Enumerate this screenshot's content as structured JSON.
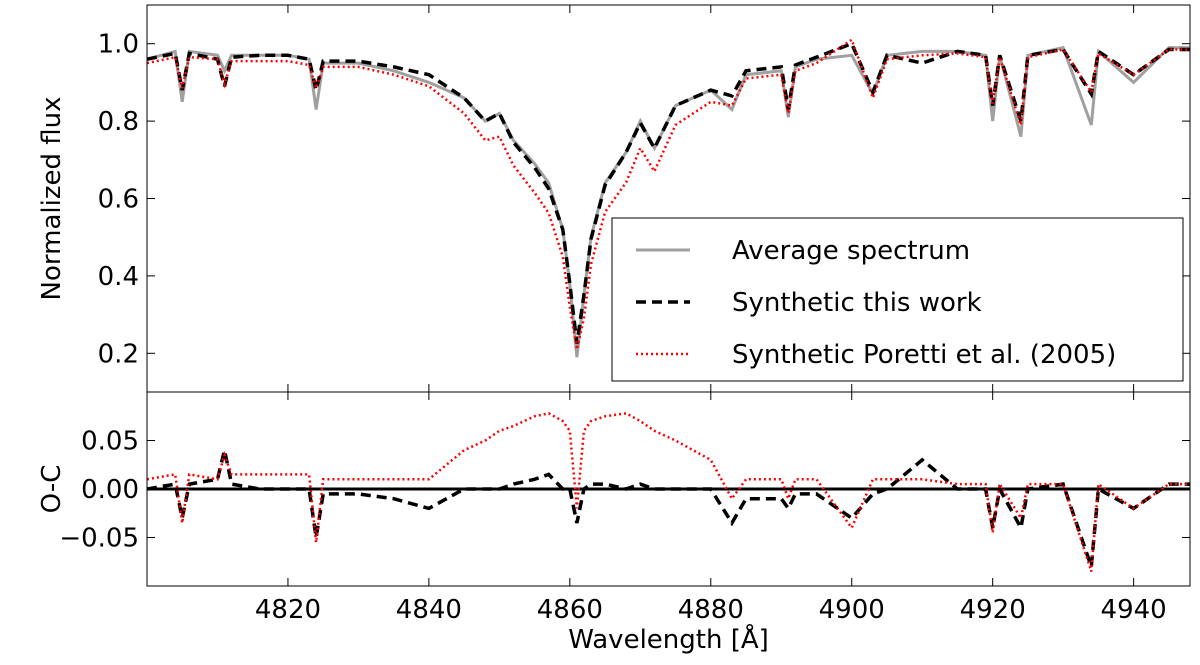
{
  "chart_data": [
    {
      "type": "line",
      "ylabel": "Normalized flux",
      "x": [
        4800,
        4804,
        4805,
        4806,
        4810,
        4811,
        4812,
        4816,
        4820,
        4823,
        4824,
        4825,
        4830,
        4835,
        4840,
        4845,
        4848,
        4850,
        4852,
        4855,
        4857,
        4859,
        4860,
        4861,
        4862,
        4863,
        4865,
        4868,
        4870,
        4872,
        4875,
        4880,
        4883,
        4885,
        4890,
        4891,
        4892,
        4895,
        4900,
        4903,
        4905,
        4910,
        4915,
        4919,
        4920,
        4921,
        4924,
        4925,
        4930,
        4934,
        4935,
        4940,
        4945,
        4948
      ],
      "xlim": [
        4800,
        4948
      ],
      "ylim": [
        0.1,
        1.1
      ],
      "yticks": [
        0.2,
        0.4,
        0.6,
        0.8,
        {
          "value": 1.0,
          "label": "1.0"
        }
      ],
      "legend": "lower right",
      "series": [
        {
          "name": "Average spectrum",
          "color": "#a0a0a0",
          "style": "solid",
          "values": [
            0.96,
            0.98,
            0.85,
            0.98,
            0.97,
            0.93,
            0.97,
            0.97,
            0.97,
            0.96,
            0.83,
            0.95,
            0.95,
            0.93,
            0.9,
            0.86,
            0.8,
            0.82,
            0.75,
            0.69,
            0.64,
            0.52,
            0.38,
            0.19,
            0.35,
            0.5,
            0.64,
            0.72,
            0.8,
            0.73,
            0.84,
            0.88,
            0.83,
            0.92,
            0.93,
            0.81,
            0.94,
            0.96,
            0.97,
            0.87,
            0.97,
            0.98,
            0.98,
            0.97,
            0.8,
            0.97,
            0.76,
            0.97,
            0.99,
            0.79,
            0.98,
            0.9,
            0.99,
            0.99
          ]
        },
        {
          "name": "Synthetic this work",
          "color": "#000000",
          "style": "dashed",
          "values": [
            0.96,
            0.975,
            0.88,
            0.975,
            0.96,
            0.89,
            0.965,
            0.97,
            0.97,
            0.96,
            0.88,
            0.955,
            0.955,
            0.94,
            0.92,
            0.86,
            0.8,
            0.82,
            0.745,
            0.68,
            0.625,
            0.52,
            0.38,
            0.225,
            0.35,
            0.495,
            0.635,
            0.72,
            0.795,
            0.73,
            0.84,
            0.88,
            0.865,
            0.93,
            0.94,
            0.83,
            0.945,
            0.965,
            1.0,
            0.875,
            0.97,
            0.95,
            0.98,
            0.97,
            0.84,
            0.97,
            0.8,
            0.97,
            0.985,
            0.87,
            0.98,
            0.92,
            0.985,
            0.985
          ]
        },
        {
          "name": "Synthetic Poretti et al. (2005)",
          "color": "#ff0000",
          "style": "dotted",
          "values": [
            0.95,
            0.965,
            0.885,
            0.965,
            0.96,
            0.895,
            0.955,
            0.955,
            0.955,
            0.945,
            0.885,
            0.94,
            0.94,
            0.92,
            0.89,
            0.82,
            0.75,
            0.76,
            0.685,
            0.615,
            0.562,
            0.45,
            0.32,
            0.21,
            0.29,
            0.43,
            0.565,
            0.642,
            0.73,
            0.67,
            0.79,
            0.85,
            0.84,
            0.91,
            0.92,
            0.82,
            0.93,
            0.95,
            1.01,
            0.86,
            0.96,
            0.97,
            0.975,
            0.965,
            0.845,
            0.965,
            0.79,
            0.965,
            0.985,
            0.875,
            0.975,
            0.92,
            0.985,
            0.985
          ]
        }
      ]
    },
    {
      "type": "line",
      "ylabel": "O-C",
      "xlabel": "Wavelength [Å]",
      "x": [
        4800,
        4804,
        4805,
        4806,
        4810,
        4811,
        4812,
        4816,
        4820,
        4823,
        4824,
        4825,
        4830,
        4835,
        4840,
        4845,
        4848,
        4850,
        4852,
        4855,
        4857,
        4859,
        4860,
        4861,
        4862,
        4863,
        4865,
        4868,
        4870,
        4872,
        4875,
        4880,
        4883,
        4885,
        4890,
        4891,
        4892,
        4895,
        4900,
        4903,
        4905,
        4910,
        4915,
        4919,
        4920,
        4921,
        4924,
        4925,
        4930,
        4934,
        4935,
        4940,
        4945,
        4948
      ],
      "xlim": [
        4800,
        4948
      ],
      "xticks": [
        4820,
        4840,
        4860,
        4880,
        4900,
        4920,
        4940
      ],
      "ylim": [
        -0.1,
        0.1
      ],
      "yticks": [
        {
          "value": -0.05,
          "label": "−0.05"
        },
        {
          "value": 0,
          "label": "0.00"
        },
        0.05
      ],
      "reference_line": 0,
      "series": [
        {
          "color": "#000000",
          "style": "dashed",
          "values": [
            0,
            0.005,
            -0.03,
            0.005,
            0.01,
            0.04,
            0.005,
            0,
            0,
            0,
            -0.05,
            -0.005,
            -0.005,
            -0.01,
            -0.02,
            0,
            0,
            0,
            0.005,
            0.01,
            0.015,
            0,
            0,
            -0.035,
            0,
            0.005,
            0.005,
            0,
            0.005,
            0,
            0,
            0,
            -0.035,
            -0.01,
            -0.01,
            -0.02,
            -0.005,
            -0.005,
            -0.03,
            -0.005,
            0,
            0.03,
            0,
            0,
            -0.04,
            0,
            -0.04,
            0,
            0.005,
            -0.08,
            0,
            -0.02,
            0.005,
            0.005
          ]
        },
        {
          "color": "#ff0000",
          "style": "dotted",
          "values": [
            0.01,
            0.015,
            -0.035,
            0.015,
            0.01,
            0.035,
            0.015,
            0.015,
            0.015,
            0.015,
            -0.055,
            0.01,
            0.01,
            0.01,
            0.01,
            0.04,
            0.05,
            0.06,
            0.065,
            0.075,
            0.078,
            0.07,
            0.06,
            -0.02,
            0.06,
            0.07,
            0.075,
            0.078,
            0.07,
            0.06,
            0.05,
            0.03,
            -0.01,
            0.01,
            0.01,
            -0.01,
            0.01,
            0.01,
            -0.04,
            0.01,
            0.01,
            0.01,
            0.005,
            0.005,
            -0.045,
            0.005,
            -0.03,
            0.005,
            0.005,
            -0.085,
            0.005,
            -0.02,
            0.005,
            0.005
          ]
        }
      ]
    }
  ]
}
